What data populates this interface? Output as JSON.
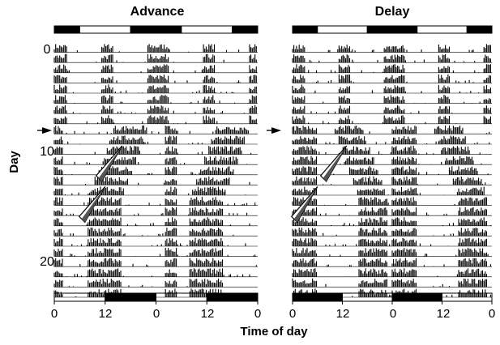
{
  "chart_data": [
    {
      "type": "actogram",
      "title": "Advance",
      "xlabel": "Time of day",
      "ylabel": "Day",
      "days": 25,
      "x_ticks": [
        "0",
        "12",
        "0",
        "12",
        "0"
      ],
      "y_ticks": [
        {
          "day": 0,
          "label": "0"
        },
        {
          "day": 10,
          "label": "10"
        },
        {
          "day": 20,
          "label": "20"
        }
      ],
      "light_dark_top": [
        "dark",
        "light",
        "dark",
        "light",
        "dark"
      ],
      "light_dark_bottom": [
        "light",
        "dark",
        "light",
        "dark"
      ],
      "shift_marker_day": 8,
      "transient_markers": [
        {
          "day": 10,
          "time_of_day_h": 16
        },
        {
          "day": 14,
          "time_of_day_h": 12
        }
      ],
      "double_plotted_hours": 48
    },
    {
      "type": "actogram",
      "title": "Delay",
      "xlabel": "Time of day",
      "ylabel": "Day",
      "days": 25,
      "x_ticks": [
        "0",
        "12",
        "0",
        "12",
        "0"
      ],
      "y_ticks": [],
      "light_dark_top": [
        "dark",
        "light",
        "dark",
        "light",
        "dark"
      ],
      "light_dark_bottom": [
        "dark",
        "light",
        "dark",
        "light"
      ],
      "shift_marker_day": 8,
      "transient_markers": [
        {
          "day": 10,
          "time_of_day_h": 13
        },
        {
          "day": 14,
          "time_of_day_h": 6
        }
      ],
      "double_plotted_hours": 48
    }
  ],
  "figure": {
    "shared_xlabel": "Time of day",
    "shared_ylabel": "Day"
  }
}
